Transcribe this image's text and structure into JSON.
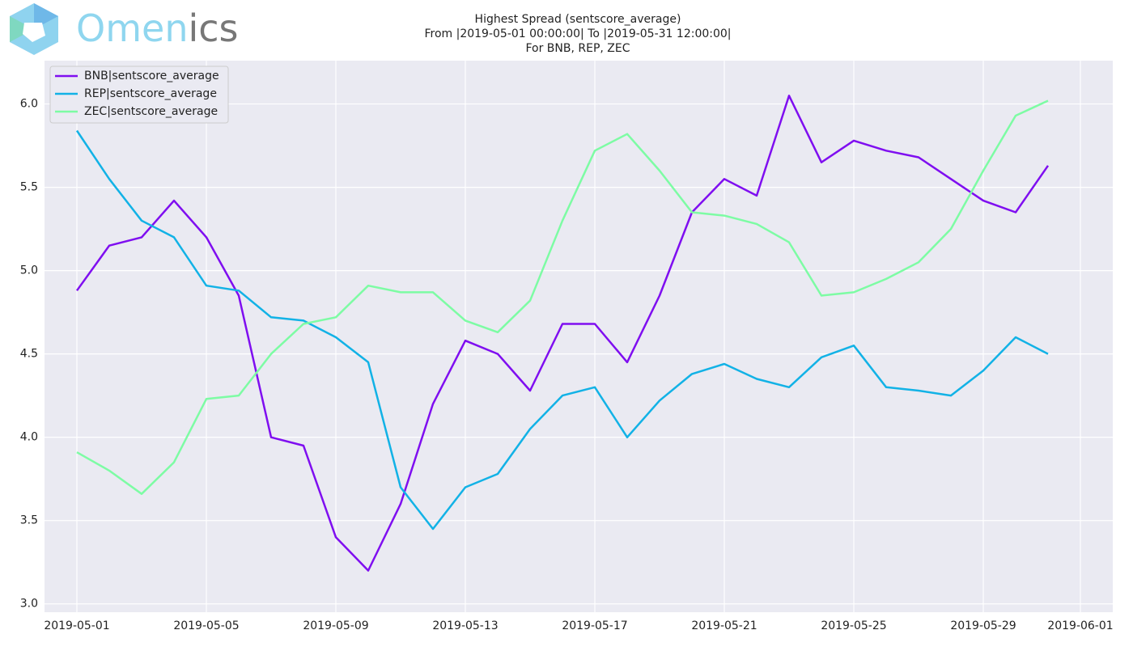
{
  "logo": {
    "main": "Omen",
    "rest": "ics"
  },
  "chart_data": {
    "type": "line",
    "title": "Highest Spread (sentscore_average)",
    "subtitle": [
      "From |2019-05-01 00:00:00| To |2019-05-31 12:00:00|",
      "For BNB, REP, ZEC"
    ],
    "x": [
      "2019-05-01",
      "2019-05-02",
      "2019-05-03",
      "2019-05-04",
      "2019-05-05",
      "2019-05-06",
      "2019-05-07",
      "2019-05-08",
      "2019-05-09",
      "2019-05-10",
      "2019-05-11",
      "2019-05-12",
      "2019-05-13",
      "2019-05-14",
      "2019-05-15",
      "2019-05-16",
      "2019-05-17",
      "2019-05-18",
      "2019-05-19",
      "2019-05-20",
      "2019-05-21",
      "2019-05-22",
      "2019-05-23",
      "2019-05-24",
      "2019-05-25",
      "2019-05-26",
      "2019-05-27",
      "2019-05-28",
      "2019-05-29",
      "2019-05-30",
      "2019-05-31"
    ],
    "series": [
      {
        "name": "BNB|sentscore_average",
        "color": "#7f0ef0",
        "values": [
          4.88,
          5.15,
          5.2,
          5.42,
          5.2,
          4.85,
          4.0,
          3.95,
          3.4,
          3.2,
          3.6,
          4.2,
          4.58,
          4.5,
          4.28,
          4.68,
          4.68,
          4.45,
          4.85,
          5.35,
          5.55,
          5.45,
          6.05,
          5.65,
          5.78,
          5.72,
          5.68,
          5.55,
          5.42,
          5.35,
          5.63
        ]
      },
      {
        "name": "REP|sentscore_average",
        "color": "#12b2e6",
        "values": [
          5.84,
          5.55,
          5.3,
          5.2,
          4.91,
          4.88,
          4.72,
          4.7,
          4.6,
          4.45,
          3.7,
          3.45,
          3.7,
          3.78,
          4.05,
          4.25,
          4.3,
          4.0,
          4.22,
          4.38,
          4.44,
          4.35,
          4.3,
          4.48,
          4.55,
          4.3,
          4.28,
          4.25,
          4.4,
          4.6,
          4.5
        ]
      },
      {
        "name": "ZEC|sentscore_average",
        "color": "#7dfca4",
        "values": [
          3.91,
          3.8,
          3.66,
          3.85,
          4.23,
          4.25,
          4.5,
          4.68,
          4.72,
          4.91,
          4.87,
          4.87,
          4.7,
          4.63,
          4.82,
          5.3,
          5.72,
          5.82,
          5.6,
          5.35,
          5.33,
          5.28,
          5.17,
          4.85,
          4.87,
          4.95,
          5.05,
          5.25,
          5.6,
          5.93,
          6.02
        ]
      }
    ],
    "xlim": [
      "2019-04-30",
      "2019-06-02"
    ],
    "xticks": [
      "2019-05-01",
      "2019-05-05",
      "2019-05-09",
      "2019-05-13",
      "2019-05-17",
      "2019-05-21",
      "2019-05-25",
      "2019-05-29",
      "2019-06-01"
    ],
    "ylim": [
      2.95,
      6.26
    ],
    "yticks": [
      {
        "value": 3,
        "label": "3.0"
      },
      3.5,
      {
        "value": 4,
        "label": "4.0"
      },
      4.5,
      {
        "value": 5,
        "label": "5.0"
      },
      5.5,
      {
        "value": 6,
        "label": "6.0"
      }
    ],
    "grid": true,
    "legend": "upper left"
  }
}
